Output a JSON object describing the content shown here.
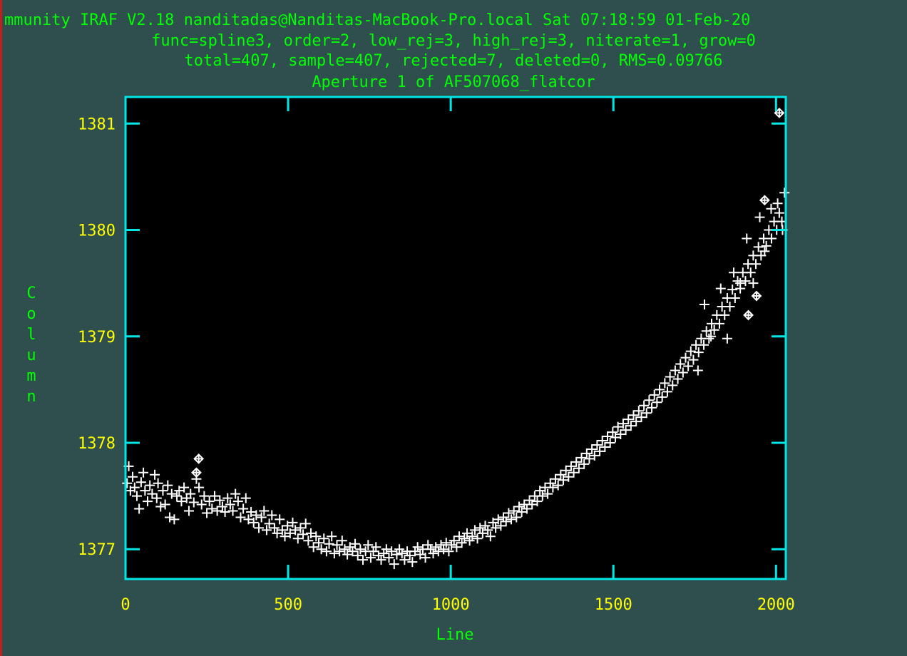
{
  "window": {
    "title_line": "mmunity IRAF V2.18 nanditadas@Nanditas-MacBook-Pro.local Sat 07:18:59 01-Feb-20",
    "subtitle_1": "func=spline3, order=2, low_rej=3, high_rej=3, niterate=1, grow=0",
    "subtitle_2": "total=407, sample=407, rejected=7, deleted=0, RMS=0.09766",
    "subtitle_3": "Aperture 1 of AF507068_flatcor"
  },
  "colors": {
    "background": "#2f4f4f",
    "plot_area": "#000000",
    "frame": "#00e5e5",
    "header_text": "#00ff00",
    "tick_labels": "#ffff00",
    "axis_titles": "#00ff00",
    "points": "#ffffff"
  },
  "chart_data": {
    "type": "scatter",
    "title": "Aperture 1 of AF507068_flatcor",
    "xlabel": "Line",
    "ylabel": "Column",
    "xlim": [
      0,
      2030
    ],
    "ylim": [
      1376.72,
      1381.25
    ],
    "x_ticks": [
      0,
      500,
      1000,
      1500,
      2000
    ],
    "y_ticks": [
      1377,
      1378,
      1379,
      1380,
      1381
    ],
    "x_tick_labels": [
      "0",
      "500",
      "1000",
      "1500",
      "2000"
    ],
    "y_tick_labels": [
      "1377",
      "1378",
      "1379",
      "1380",
      "1381"
    ],
    "grid": false,
    "fit": {
      "func": "spline3",
      "order": 2,
      "rms": 0.09766
    },
    "series": [
      {
        "marker": "plus",
        "points": [
          [
            5,
            1377.62
          ],
          [
            10,
            1377.78
          ],
          [
            15,
            1377.55
          ],
          [
            22,
            1377.68
          ],
          [
            28,
            1377.58
          ],
          [
            35,
            1377.5
          ],
          [
            42,
            1377.38
          ],
          [
            48,
            1377.63
          ],
          [
            55,
            1377.72
          ],
          [
            60,
            1377.55
          ],
          [
            68,
            1377.45
          ],
          [
            75,
            1377.6
          ],
          [
            82,
            1377.52
          ],
          [
            90,
            1377.7
          ],
          [
            96,
            1377.48
          ],
          [
            100,
            1377.62
          ],
          [
            108,
            1377.4
          ],
          [
            115,
            1377.55
          ],
          [
            122,
            1377.42
          ],
          [
            130,
            1377.6
          ],
          [
            136,
            1377.3
          ],
          [
            142,
            1377.52
          ],
          [
            150,
            1377.28
          ],
          [
            158,
            1377.5
          ],
          [
            165,
            1377.55
          ],
          [
            172,
            1377.45
          ],
          [
            180,
            1377.58
          ],
          [
            188,
            1377.48
          ],
          [
            195,
            1377.36
          ],
          [
            200,
            1377.52
          ],
          [
            210,
            1377.44
          ],
          [
            218,
            1377.66
          ],
          [
            226,
            1377.58
          ],
          [
            234,
            1377.42
          ],
          [
            242,
            1377.5
          ],
          [
            250,
            1377.34
          ],
          [
            258,
            1377.45
          ],
          [
            266,
            1377.38
          ],
          [
            274,
            1377.5
          ],
          [
            282,
            1377.36
          ],
          [
            290,
            1377.46
          ],
          [
            298,
            1377.4
          ],
          [
            306,
            1377.35
          ],
          [
            314,
            1377.48
          ],
          [
            322,
            1377.42
          ],
          [
            330,
            1377.36
          ],
          [
            338,
            1377.52
          ],
          [
            346,
            1377.45
          ],
          [
            354,
            1377.3
          ],
          [
            362,
            1377.38
          ],
          [
            370,
            1377.48
          ],
          [
            378,
            1377.28
          ],
          [
            386,
            1377.35
          ],
          [
            394,
            1377.25
          ],
          [
            402,
            1377.32
          ],
          [
            410,
            1377.2
          ],
          [
            418,
            1377.3
          ],
          [
            426,
            1377.36
          ],
          [
            434,
            1377.18
          ],
          [
            442,
            1377.24
          ],
          [
            450,
            1377.32
          ],
          [
            458,
            1377.2
          ],
          [
            466,
            1377.15
          ],
          [
            474,
            1377.28
          ],
          [
            482,
            1377.18
          ],
          [
            490,
            1377.12
          ],
          [
            498,
            1377.22
          ],
          [
            506,
            1377.15
          ],
          [
            514,
            1377.25
          ],
          [
            522,
            1377.18
          ],
          [
            530,
            1377.1
          ],
          [
            538,
            1377.2
          ],
          [
            546,
            1377.14
          ],
          [
            554,
            1377.24
          ],
          [
            562,
            1377.08
          ],
          [
            570,
            1377.15
          ],
          [
            578,
            1377.02
          ],
          [
            586,
            1377.12
          ],
          [
            594,
            1377.06
          ],
          [
            602,
            1377.0
          ],
          [
            610,
            1377.1
          ],
          [
            618,
            1376.98
          ],
          [
            626,
            1377.05
          ],
          [
            634,
            1377.12
          ],
          [
            642,
            1376.96
          ],
          [
            650,
            1377.04
          ],
          [
            658,
            1376.98
          ],
          [
            666,
            1377.08
          ],
          [
            674,
            1377.0
          ],
          [
            682,
            1376.95
          ],
          [
            690,
            1377.02
          ],
          [
            698,
            1376.98
          ],
          [
            706,
            1377.05
          ],
          [
            714,
            1376.94
          ],
          [
            722,
            1377.0
          ],
          [
            730,
            1376.9
          ],
          [
            738,
            1376.98
          ],
          [
            746,
            1377.04
          ],
          [
            754,
            1376.92
          ],
          [
            762,
            1376.98
          ],
          [
            770,
            1377.02
          ],
          [
            778,
            1376.94
          ],
          [
            786,
            1376.9
          ],
          [
            794,
            1376.96
          ],
          [
            802,
            1377.0
          ],
          [
            810,
            1376.92
          ],
          [
            818,
            1376.98
          ],
          [
            826,
            1376.86
          ],
          [
            834,
            1376.95
          ],
          [
            842,
            1377.0
          ],
          [
            850,
            1376.96
          ],
          [
            858,
            1376.9
          ],
          [
            866,
            1376.98
          ],
          [
            874,
            1376.94
          ],
          [
            882,
            1376.88
          ],
          [
            890,
            1376.98
          ],
          [
            898,
            1377.02
          ],
          [
            906,
            1376.95
          ],
          [
            914,
            1377.0
          ],
          [
            922,
            1376.92
          ],
          [
            930,
            1377.04
          ],
          [
            938,
            1377.0
          ],
          [
            946,
            1376.96
          ],
          [
            954,
            1377.02
          ],
          [
            962,
            1376.98
          ],
          [
            970,
            1377.04
          ],
          [
            978,
            1377.0
          ],
          [
            986,
            1377.06
          ],
          [
            994,
            1376.98
          ],
          [
            1002,
            1377.04
          ],
          [
            1010,
            1377.08
          ],
          [
            1018,
            1377.02
          ],
          [
            1026,
            1377.12
          ],
          [
            1034,
            1377.06
          ],
          [
            1042,
            1377.1
          ],
          [
            1050,
            1377.15
          ],
          [
            1058,
            1377.08
          ],
          [
            1066,
            1377.12
          ],
          [
            1074,
            1377.18
          ],
          [
            1082,
            1377.1
          ],
          [
            1090,
            1377.2
          ],
          [
            1098,
            1377.15
          ],
          [
            1106,
            1377.22
          ],
          [
            1114,
            1377.18
          ],
          [
            1122,
            1377.12
          ],
          [
            1130,
            1377.25
          ],
          [
            1138,
            1377.2
          ],
          [
            1146,
            1377.28
          ],
          [
            1154,
            1377.22
          ],
          [
            1162,
            1377.3
          ],
          [
            1170,
            1377.26
          ],
          [
            1178,
            1377.34
          ],
          [
            1186,
            1377.28
          ],
          [
            1194,
            1377.36
          ],
          [
            1202,
            1377.3
          ],
          [
            1210,
            1377.4
          ],
          [
            1218,
            1377.35
          ],
          [
            1226,
            1377.42
          ],
          [
            1234,
            1377.38
          ],
          [
            1242,
            1377.46
          ],
          [
            1250,
            1377.42
          ],
          [
            1258,
            1377.5
          ],
          [
            1266,
            1377.45
          ],
          [
            1274,
            1377.55
          ],
          [
            1282,
            1377.5
          ],
          [
            1290,
            1377.58
          ],
          [
            1298,
            1377.52
          ],
          [
            1306,
            1377.62
          ],
          [
            1314,
            1377.58
          ],
          [
            1322,
            1377.66
          ],
          [
            1330,
            1377.6
          ],
          [
            1338,
            1377.7
          ],
          [
            1346,
            1377.65
          ],
          [
            1354,
            1377.74
          ],
          [
            1362,
            1377.68
          ],
          [
            1370,
            1377.78
          ],
          [
            1378,
            1377.72
          ],
          [
            1386,
            1377.82
          ],
          [
            1394,
            1377.76
          ],
          [
            1402,
            1377.86
          ],
          [
            1410,
            1377.8
          ],
          [
            1418,
            1377.9
          ],
          [
            1426,
            1377.85
          ],
          [
            1434,
            1377.94
          ],
          [
            1442,
            1377.88
          ],
          [
            1450,
            1377.98
          ],
          [
            1458,
            1377.92
          ],
          [
            1466,
            1378.02
          ],
          [
            1474,
            1377.96
          ],
          [
            1482,
            1378.06
          ],
          [
            1490,
            1378.0
          ],
          [
            1498,
            1378.1
          ],
          [
            1506,
            1378.05
          ],
          [
            1514,
            1378.15
          ],
          [
            1522,
            1378.08
          ],
          [
            1530,
            1378.18
          ],
          [
            1538,
            1378.12
          ],
          [
            1546,
            1378.22
          ],
          [
            1554,
            1378.16
          ],
          [
            1562,
            1378.26
          ],
          [
            1570,
            1378.2
          ],
          [
            1578,
            1378.3
          ],
          [
            1586,
            1378.24
          ],
          [
            1594,
            1378.35
          ],
          [
            1602,
            1378.28
          ],
          [
            1610,
            1378.4
          ],
          [
            1618,
            1378.33
          ],
          [
            1626,
            1378.45
          ],
          [
            1634,
            1378.38
          ],
          [
            1642,
            1378.5
          ],
          [
            1650,
            1378.43
          ],
          [
            1658,
            1378.56
          ],
          [
            1666,
            1378.48
          ],
          [
            1674,
            1378.62
          ],
          [
            1682,
            1378.54
          ],
          [
            1690,
            1378.68
          ],
          [
            1698,
            1378.6
          ],
          [
            1706,
            1378.74
          ],
          [
            1714,
            1378.66
          ],
          [
            1722,
            1378.8
          ],
          [
            1730,
            1378.72
          ],
          [
            1738,
            1378.86
          ],
          [
            1746,
            1378.78
          ],
          [
            1754,
            1378.92
          ],
          [
            1762,
            1378.85
          ],
          [
            1770,
            1378.98
          ],
          [
            1778,
            1378.92
          ],
          [
            1786,
            1379.05
          ],
          [
            1794,
            1378.98
          ],
          [
            1802,
            1379.12
          ],
          [
            1810,
            1379.06
          ],
          [
            1818,
            1379.2
          ],
          [
            1826,
            1379.12
          ],
          [
            1834,
            1379.28
          ],
          [
            1842,
            1379.2
          ],
          [
            1850,
            1379.36
          ],
          [
            1858,
            1379.28
          ],
          [
            1866,
            1379.44
          ],
          [
            1874,
            1379.36
          ],
          [
            1882,
            1379.52
          ],
          [
            1890,
            1379.45
          ],
          [
            1898,
            1379.6
          ],
          [
            1906,
            1379.52
          ],
          [
            1914,
            1379.68
          ],
          [
            1922,
            1379.6
          ],
          [
            1930,
            1379.76
          ],
          [
            1938,
            1379.68
          ],
          [
            1946,
            1379.84
          ],
          [
            1954,
            1379.76
          ],
          [
            1962,
            1379.92
          ],
          [
            1970,
            1379.85
          ],
          [
            1978,
            1380.0
          ],
          [
            1986,
            1379.92
          ],
          [
            1994,
            1380.08
          ],
          [
            2002,
            1380.0
          ],
          [
            2010,
            1380.16
          ],
          [
            2018,
            1380.08
          ],
          [
            2026,
            1380.35
          ],
          [
            1760,
            1378.68
          ],
          [
            1780,
            1379.3
          ],
          [
            1800,
            1379.0
          ],
          [
            1830,
            1379.45
          ],
          [
            1850,
            1378.98
          ],
          [
            1870,
            1379.6
          ],
          [
            1890,
            1379.5
          ],
          [
            1910,
            1379.92
          ],
          [
            1930,
            1379.5
          ],
          [
            1950,
            1380.12
          ],
          [
            1965,
            1379.8
          ],
          [
            1985,
            1380.2
          ],
          [
            2005,
            1380.25
          ],
          [
            2020,
            1380.0
          ]
        ]
      },
      {
        "marker": "rejected-diamond",
        "points": [
          [
            218,
            1377.72
          ],
          [
            225,
            1377.85
          ],
          [
            1915,
            1379.2
          ],
          [
            1940,
            1379.38
          ],
          [
            1965,
            1380.28
          ],
          [
            2010,
            1381.1
          ]
        ]
      }
    ]
  }
}
